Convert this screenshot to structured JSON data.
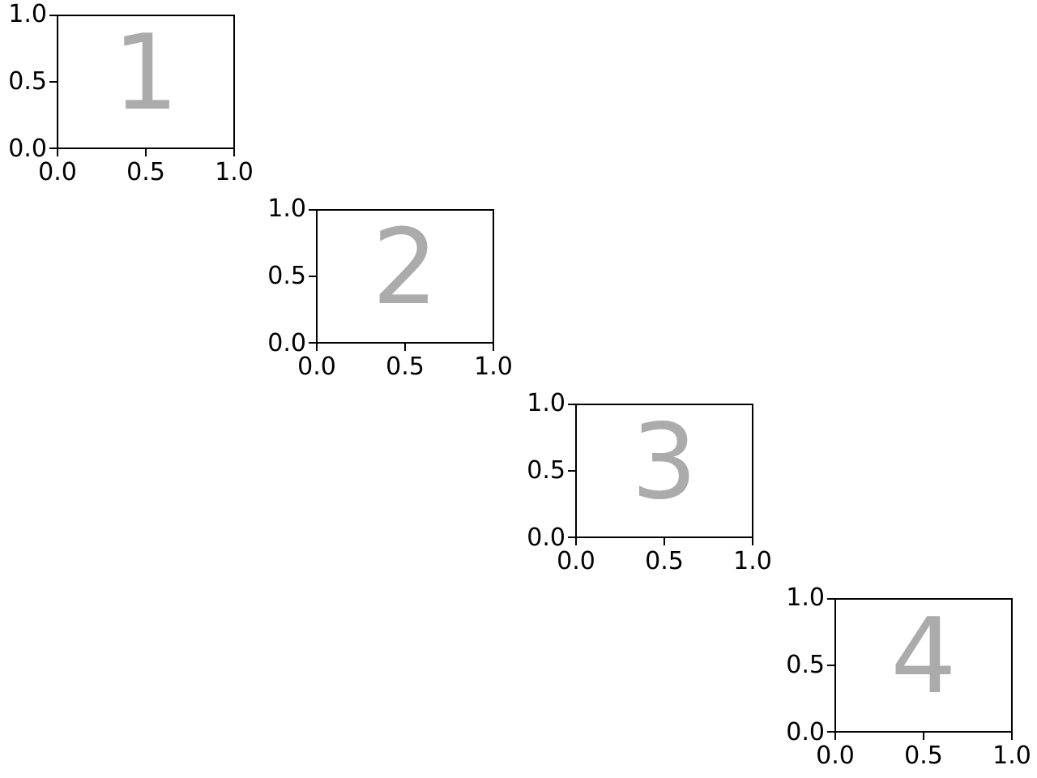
{
  "figure": {
    "colors": {
      "background": "#ffffff",
      "spine": "#000000",
      "tick": "#000000",
      "tick_label": "#000000",
      "annotation": "#ababab"
    },
    "subplots": [
      {
        "label": "1",
        "x_tick_labels": [
          "0.0",
          "0.5",
          "1.0"
        ],
        "y_tick_labels": [
          "0.0",
          "0.5",
          "1.0"
        ]
      },
      {
        "label": "2",
        "x_tick_labels": [
          "0.0",
          "0.5",
          "1.0"
        ],
        "y_tick_labels": [
          "0.0",
          "0.5",
          "1.0"
        ]
      },
      {
        "label": "3",
        "x_tick_labels": [
          "0.0",
          "0.5",
          "1.0"
        ],
        "y_tick_labels": [
          "0.0",
          "0.5",
          "1.0"
        ]
      },
      {
        "label": "4",
        "x_tick_labels": [
          "0.0",
          "0.5",
          "1.0"
        ],
        "y_tick_labels": [
          "0.0",
          "0.5",
          "1.0"
        ]
      }
    ]
  },
  "chart_data": [
    {
      "type": "text",
      "title": "",
      "xlabel": "",
      "ylabel": "",
      "xlim": [
        0.0,
        1.0
      ],
      "ylim": [
        0.0,
        1.0
      ],
      "x_ticks": [
        0.0,
        0.5,
        1.0
      ],
      "y_ticks": [
        0.0,
        0.5,
        1.0
      ],
      "grid": false,
      "legend": false,
      "series": [],
      "annotation": "1",
      "annotation_xy": [
        0.5,
        0.5
      ],
      "annotation_color": "#ababab"
    },
    {
      "type": "text",
      "title": "",
      "xlabel": "",
      "ylabel": "",
      "xlim": [
        0.0,
        1.0
      ],
      "ylim": [
        0.0,
        1.0
      ],
      "x_ticks": [
        0.0,
        0.5,
        1.0
      ],
      "y_ticks": [
        0.0,
        0.5,
        1.0
      ],
      "grid": false,
      "legend": false,
      "series": [],
      "annotation": "2",
      "annotation_xy": [
        0.5,
        0.5
      ],
      "annotation_color": "#ababab"
    },
    {
      "type": "text",
      "title": "",
      "xlabel": "",
      "ylabel": "",
      "xlim": [
        0.0,
        1.0
      ],
      "ylim": [
        0.0,
        1.0
      ],
      "x_ticks": [
        0.0,
        0.5,
        1.0
      ],
      "y_ticks": [
        0.0,
        0.5,
        1.0
      ],
      "grid": false,
      "legend": false,
      "series": [],
      "annotation": "3",
      "annotation_xy": [
        0.5,
        0.5
      ],
      "annotation_color": "#ababab"
    },
    {
      "type": "text",
      "title": "",
      "xlabel": "",
      "ylabel": "",
      "xlim": [
        0.0,
        1.0
      ],
      "ylim": [
        0.0,
        1.0
      ],
      "x_ticks": [
        0.0,
        0.5,
        1.0
      ],
      "y_ticks": [
        0.0,
        0.5,
        1.0
      ],
      "grid": false,
      "legend": false,
      "series": [],
      "annotation": "4",
      "annotation_xy": [
        0.5,
        0.5
      ],
      "annotation_color": "#ababab"
    }
  ]
}
